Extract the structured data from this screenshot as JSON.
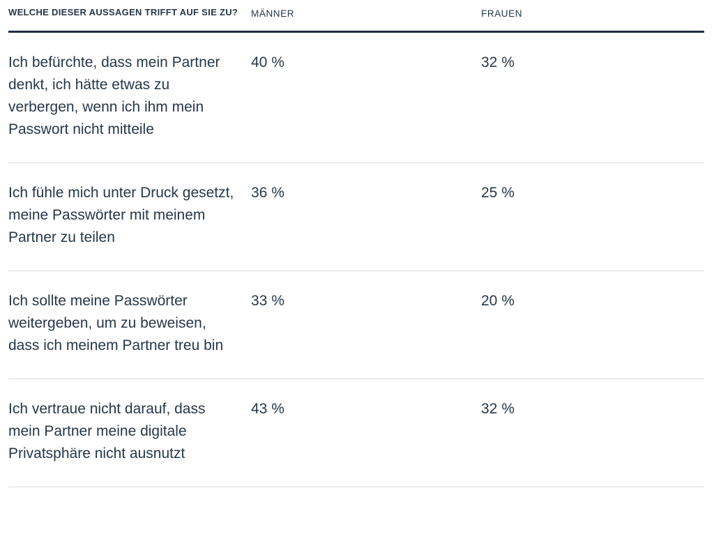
{
  "chart_data": {
    "type": "table",
    "title": "WELCHE DIESER AUSSAGEN TRIFFT AUF SIE ZU?",
    "columns": [
      "MÄNNER",
      "FRAUEN"
    ],
    "unit": "%",
    "series": [
      {
        "name": "Männer",
        "values": [
          40,
          36,
          33,
          43
        ]
      },
      {
        "name": "Frauen",
        "values": [
          32,
          25,
          20,
          32
        ]
      }
    ],
    "rows": [
      {
        "statement": "Ich befürchte, dass mein Partner denkt, ich hätte etwas zu verbergen, wenn ich ihm mein Passwort nicht mitteile",
        "maenner": "40 %",
        "frauen": "32 %"
      },
      {
        "statement": "Ich fühle mich unter Druck gesetzt, meine Passwörter mit meinem Partner zu teilen",
        "maenner": "36 %",
        "frauen": "25 %"
      },
      {
        "statement": "Ich sollte meine Passwörter weitergeben, um zu beweisen, dass ich meinem Partner treu bin",
        "maenner": "33 %",
        "frauen": "20 %"
      },
      {
        "statement": "Ich vertraue nicht darauf, dass mein Partner meine digitale Privatsphäre nicht ausnutzt",
        "maenner": "43 %",
        "frauen": "32 %"
      }
    ]
  },
  "colors": {
    "text": "#263748",
    "header_rule": "#1e2d3d",
    "row_separator": "#d9dde2",
    "background": "#ffffff"
  }
}
